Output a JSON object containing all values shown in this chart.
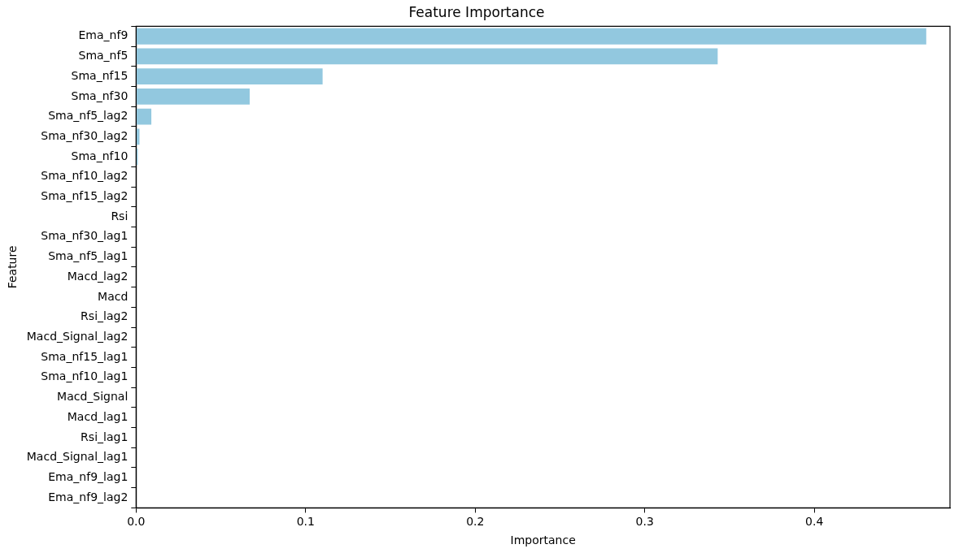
{
  "chart_data": {
    "type": "bar",
    "orientation": "horizontal",
    "title": "Feature Importance",
    "xlabel": "Importance",
    "ylabel": "Feature",
    "categories": [
      "Ema_nf9",
      "Sma_nf5",
      "Sma_nf15",
      "Sma_nf30",
      "Sma_nf5_lag2",
      "Sma_nf30_lag2",
      "Sma_nf10",
      "Sma_nf10_lag2",
      "Sma_nf15_lag2",
      "Rsi",
      "Sma_nf30_lag1",
      "Sma_nf5_lag1",
      "Macd_lag2",
      "Macd",
      "Rsi_lag2",
      "Macd_Signal_lag2",
      "Sma_nf15_lag1",
      "Sma_nf10_lag1",
      "Macd_Signal",
      "Macd_lag1",
      "Rsi_lag1",
      "Macd_Signal_lag1",
      "Ema_nf9_lag1",
      "Ema_nf9_lag2"
    ],
    "values": [
      0.466,
      0.343,
      0.11,
      0.067,
      0.009,
      0.002,
      0.001,
      0,
      0,
      0,
      0,
      0,
      0,
      0,
      0,
      0,
      0,
      0,
      0,
      0,
      0,
      0,
      0,
      0
    ],
    "color": "#92c8df",
    "xlim": [
      0,
      0.48
    ],
    "xticks": [
      {
        "value": 0,
        "label": "0.0"
      },
      {
        "value": 0.1,
        "label": "0.1"
      },
      {
        "value": 0.2,
        "label": "0.2"
      },
      {
        "value": 0.3,
        "label": "0.3"
      },
      {
        "value": 0.4,
        "label": "0.4"
      }
    ],
    "grid": false,
    "legend": false
  }
}
